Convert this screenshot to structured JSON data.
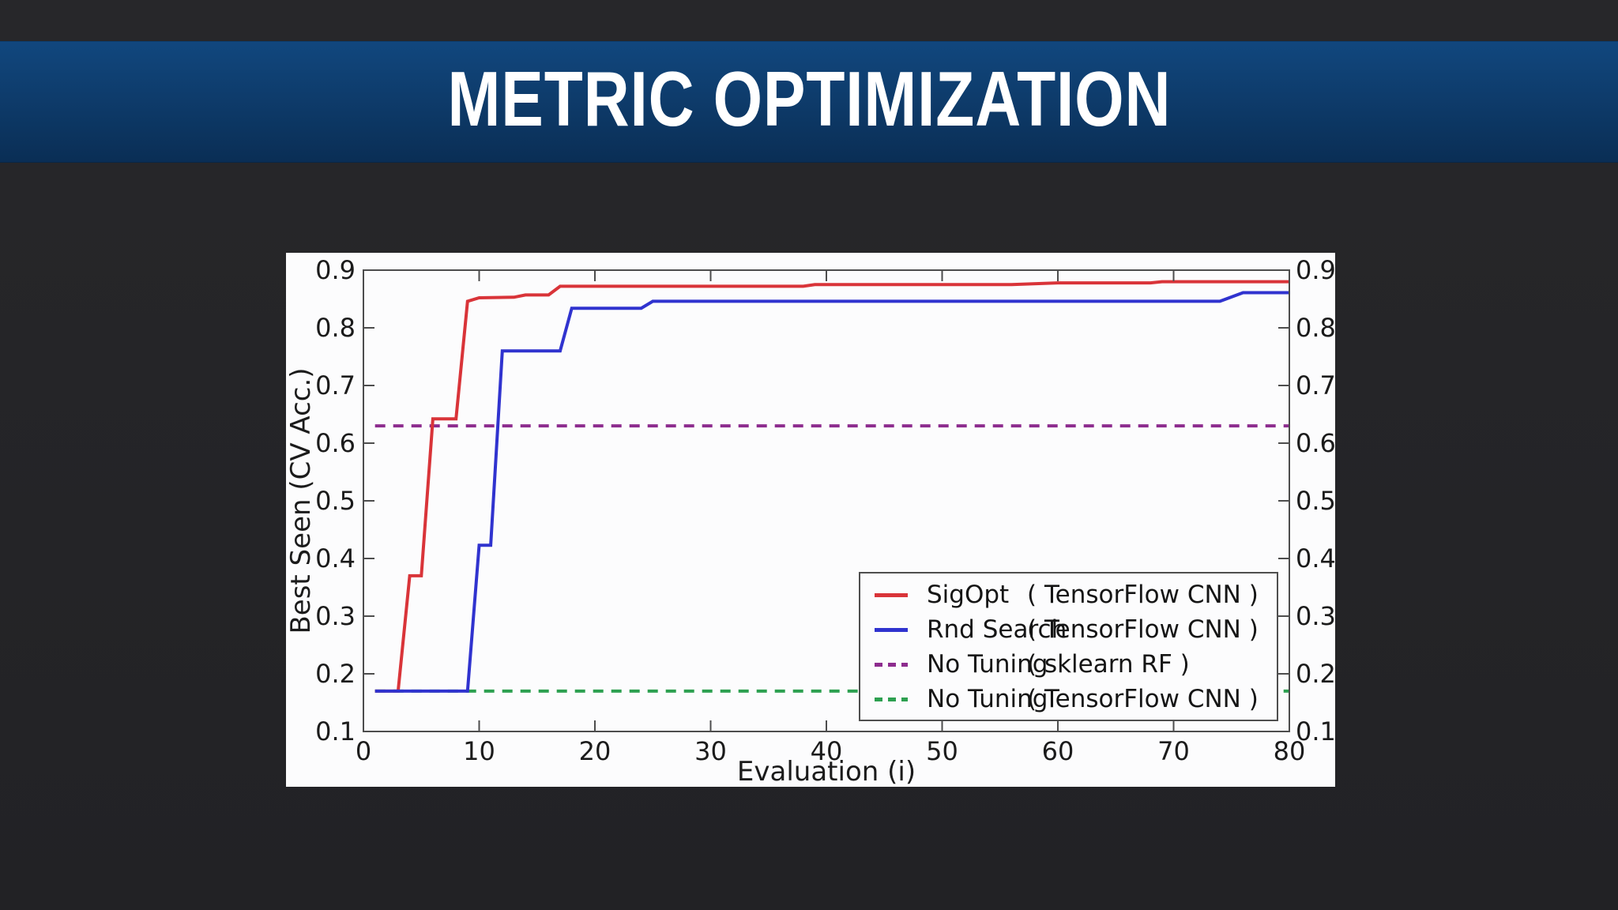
{
  "slide": {
    "title": "METRIC OPTIMIZATION"
  },
  "colors": {
    "page_background": "#252528",
    "banner_top": "#11477e",
    "banner_bottom": "#0a2e55",
    "title_text": "#ffffff",
    "panel_background": "#fcfcfd",
    "axis_spine": "#4d4d4d",
    "tick_text": "#1b1b1b",
    "sigopt_red": "#d93439",
    "rnd_search_blue": "#3033cf",
    "no_tuning_purple": "#8d2c8e",
    "no_tuning_green": "#2da050"
  },
  "chart_data": {
    "type": "line",
    "title": "",
    "xlabel": "Evaluation (i)",
    "ylabel": "Best Seen (CV Acc.)",
    "xlim": [
      0,
      80
    ],
    "ylim": [
      0.1,
      0.9
    ],
    "x_ticks": [
      0,
      10,
      20,
      30,
      40,
      50,
      60,
      70,
      80
    ],
    "y_ticks": [
      0.1,
      0.2,
      0.3,
      0.4,
      0.5,
      0.6,
      0.7,
      0.8,
      0.9
    ],
    "grid": false,
    "legend_position": "lower right",
    "draw_order": [
      3,
      2,
      0,
      1
    ],
    "series": [
      {
        "name": "SigOpt",
        "detail": "( TensorFlow CNN )",
        "color": "#d93439",
        "style": "solid",
        "points": [
          [
            1,
            0.17
          ],
          [
            3,
            0.17
          ],
          [
            4,
            0.37
          ],
          [
            5,
            0.37
          ],
          [
            6,
            0.642
          ],
          [
            8,
            0.642
          ],
          [
            9,
            0.846
          ],
          [
            10,
            0.852
          ],
          [
            13,
            0.853
          ],
          [
            14,
            0.857
          ],
          [
            16,
            0.857
          ],
          [
            17,
            0.872
          ],
          [
            38,
            0.872
          ],
          [
            39,
            0.875
          ],
          [
            56,
            0.875
          ],
          [
            60,
            0.878
          ],
          [
            68,
            0.878
          ],
          [
            69,
            0.88
          ],
          [
            80,
            0.88
          ]
        ]
      },
      {
        "name": "Rnd Search",
        "detail": "( TensorFlow CNN )",
        "color": "#3033cf",
        "style": "solid",
        "points": [
          [
            1,
            0.17
          ],
          [
            9,
            0.17
          ],
          [
            10,
            0.423
          ],
          [
            11,
            0.423
          ],
          [
            12,
            0.76
          ],
          [
            17,
            0.76
          ],
          [
            18,
            0.834
          ],
          [
            24,
            0.834
          ],
          [
            25,
            0.846
          ],
          [
            74,
            0.846
          ],
          [
            76,
            0.861
          ],
          [
            80,
            0.861
          ]
        ]
      },
      {
        "name": "No Tuning",
        "detail": "( sklearn RF )",
        "color": "#8d2c8e",
        "style": "dashed",
        "points": [
          [
            1,
            0.63
          ],
          [
            80,
            0.63
          ]
        ]
      },
      {
        "name": "No Tuning",
        "detail": "( TensorFlow CNN )",
        "color": "#2da050",
        "style": "dashed",
        "points": [
          [
            1,
            0.17
          ],
          [
            80,
            0.17
          ]
        ]
      }
    ]
  }
}
